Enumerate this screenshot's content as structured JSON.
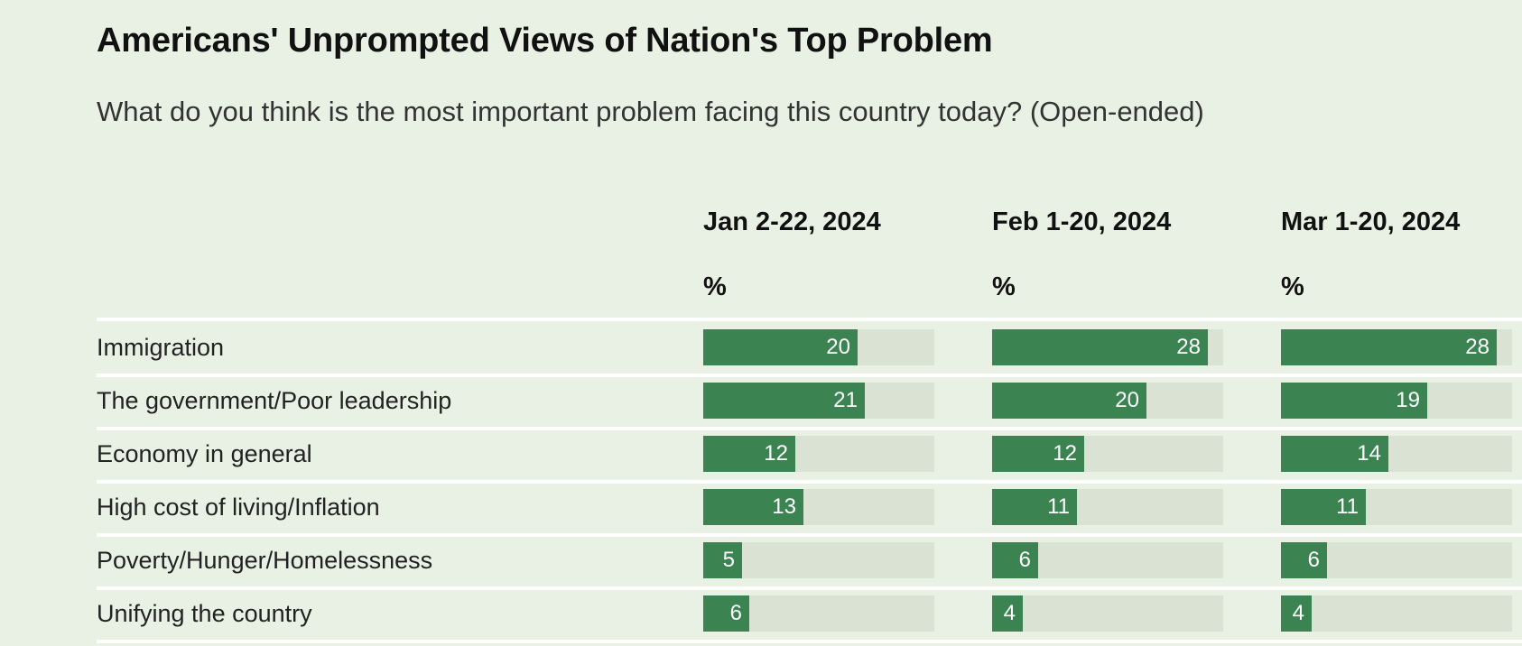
{
  "chart_data": {
    "type": "bar",
    "title": "Americans' Unprompted Views of Nation's Top Problem",
    "subtitle": "What do you think is the most important problem facing this country today? (Open-ended)",
    "unit_label": "%",
    "xlim": [
      0,
      30
    ],
    "categories": [
      "Immigration",
      "The government/Poor leadership",
      "Economy in general",
      "High cost of living/Inflation",
      "Poverty/Hunger/Homelessness",
      "Unifying the country"
    ],
    "series": [
      {
        "name": "Jan 2-22, 2024",
        "values": [
          20,
          21,
          12,
          13,
          5,
          6
        ]
      },
      {
        "name": "Feb 1-20, 2024",
        "values": [
          28,
          20,
          12,
          11,
          6,
          4
        ]
      },
      {
        "name": "Mar 1-20, 2024",
        "values": [
          28,
          19,
          14,
          11,
          6,
          4
        ]
      }
    ],
    "colors": {
      "bar": "#3b8452",
      "track": "#d9e2d3",
      "background": "#e8f1e3"
    }
  }
}
